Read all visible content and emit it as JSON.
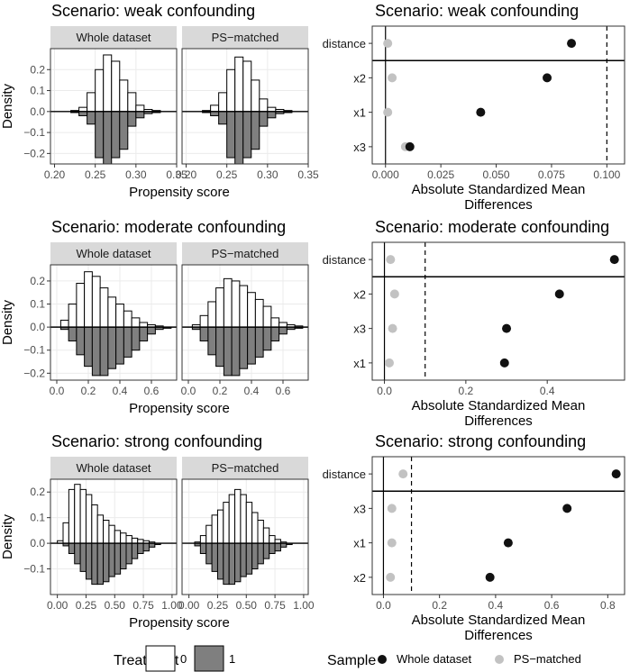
{
  "colors": {
    "treated": "#7f7f7f",
    "control": "#ffffff",
    "whole": "#111111",
    "matched": "#c2c2c2",
    "strip": "#d9d9d9"
  },
  "chart_data": [
    {
      "type": "bar",
      "subtype": "mirrored-histogram",
      "title": "Scenario: weak confounding",
      "ylabel": "Density",
      "xlabel": "Propensity score",
      "ylim": [
        -0.25,
        0.3
      ],
      "yticks": [
        "0.2",
        "0.1",
        "0.0",
        "−0.1",
        "−0.2"
      ],
      "yticks_values": [
        0.2,
        0.1,
        0,
        -0.1,
        -0.2
      ],
      "panels": [
        {
          "strip": "Whole dataset",
          "xlim": [
            0.195,
            0.35
          ],
          "xticks": [
            "0.20",
            "0.25",
            "0.30",
            "0.35"
          ],
          "xticks_values": [
            0.2,
            0.25,
            0.3,
            0.35
          ],
          "bins": [
            0.215,
            0.225,
            0.235,
            0.245,
            0.255,
            0.265,
            0.275,
            0.285,
            0.295,
            0.305,
            0.315,
            0.325,
            0.335,
            0.345
          ],
          "top": [
            0.0,
            0.005,
            0.02,
            0.09,
            0.2,
            0.27,
            0.24,
            0.15,
            0.09,
            0.03,
            0.01,
            0.005,
            0.0,
            0.0
          ],
          "bottom": [
            0.0,
            -0.005,
            -0.02,
            -0.06,
            -0.22,
            -0.25,
            -0.22,
            -0.18,
            -0.07,
            -0.03,
            -0.01,
            -0.005,
            0.0,
            0.0
          ]
        },
        {
          "strip": "PS−matched",
          "xlim": [
            0.195,
            0.35
          ],
          "xticks": [
            "0.20",
            "0.25",
            "0.30",
            "0.35"
          ],
          "xticks_values": [
            0.2,
            0.25,
            0.3,
            0.35
          ],
          "bins": [
            0.215,
            0.225,
            0.235,
            0.245,
            0.255,
            0.265,
            0.275,
            0.285,
            0.295,
            0.305,
            0.315,
            0.325,
            0.335,
            0.345
          ],
          "top": [
            0.0,
            0.005,
            0.03,
            0.09,
            0.2,
            0.26,
            0.24,
            0.15,
            0.06,
            0.02,
            0.01,
            0.005,
            0.0,
            0.0
          ],
          "bottom": [
            0.0,
            -0.005,
            -0.02,
            -0.06,
            -0.22,
            -0.25,
            -0.22,
            -0.18,
            -0.07,
            -0.03,
            -0.01,
            -0.005,
            0.0,
            0.0
          ]
        }
      ]
    },
    {
      "type": "scatter",
      "subtype": "love-plot",
      "title": "Scenario: weak confounding",
      "xlabel": "Absolute Standardized Mean Differences",
      "xlim": [
        -0.006,
        0.108
      ],
      "xticks": [
        "0.000",
        "0.025",
        "0.050",
        "0.075",
        "0.100"
      ],
      "xticks_values": [
        0,
        0.025,
        0.05,
        0.075,
        0.1
      ],
      "threshold": 0.1,
      "rows": [
        "distance",
        "x2",
        "x1",
        "x3"
      ],
      "whole": [
        0.084,
        0.073,
        0.043,
        0.011
      ],
      "matched": [
        0.001,
        0.003,
        0.001,
        0.009
      ]
    },
    {
      "type": "bar",
      "subtype": "mirrored-histogram",
      "title": "Scenario: moderate confounding",
      "ylabel": "Density",
      "xlabel": "Propensity score",
      "ylim": [
        -0.23,
        0.27
      ],
      "yticks": [
        "0.2",
        "0.1",
        "0.0",
        "−0.1",
        "−0.2"
      ],
      "yticks_values": [
        0.2,
        0.1,
        0,
        -0.1,
        -0.2
      ],
      "panels": [
        {
          "strip": "Whole dataset",
          "xlim": [
            -0.04,
            0.76
          ],
          "xticks": [
            "0.0",
            "0.2",
            "0.4",
            "0.6"
          ],
          "xticks_values": [
            0,
            0.2,
            0.4,
            0.6
          ],
          "bins": [
            0.05,
            0.1,
            0.15,
            0.2,
            0.25,
            0.3,
            0.35,
            0.4,
            0.45,
            0.5,
            0.55,
            0.6,
            0.65,
            0.7
          ],
          "top": [
            0.03,
            0.1,
            0.19,
            0.24,
            0.22,
            0.17,
            0.13,
            0.1,
            0.07,
            0.04,
            0.02,
            0.01,
            0.005,
            0.0
          ],
          "bottom": [
            -0.01,
            -0.06,
            -0.12,
            -0.17,
            -0.21,
            -0.21,
            -0.18,
            -0.16,
            -0.13,
            -0.1,
            -0.06,
            -0.03,
            -0.01,
            -0.005
          ]
        },
        {
          "strip": "PS−matched",
          "xlim": [
            -0.04,
            0.76
          ],
          "xticks": [
            "0.0",
            "0.2",
            "0.4",
            "0.6"
          ],
          "xticks_values": [
            0,
            0.2,
            0.4,
            0.6
          ],
          "bins": [
            0.05,
            0.1,
            0.15,
            0.2,
            0.25,
            0.3,
            0.35,
            0.4,
            0.45,
            0.5,
            0.55,
            0.6,
            0.65,
            0.7
          ],
          "top": [
            0.01,
            0.05,
            0.11,
            0.17,
            0.21,
            0.2,
            0.18,
            0.15,
            0.12,
            0.09,
            0.04,
            0.02,
            0.01,
            0.005
          ],
          "bottom": [
            -0.01,
            -0.06,
            -0.12,
            -0.17,
            -0.21,
            -0.21,
            -0.18,
            -0.16,
            -0.13,
            -0.1,
            -0.06,
            -0.03,
            -0.01,
            -0.005
          ]
        }
      ]
    },
    {
      "type": "scatter",
      "subtype": "love-plot",
      "title": "Scenario: moderate confounding",
      "xlabel": "Absolute Standardized Mean Differences",
      "xlim": [
        -0.03,
        0.59
      ],
      "xticks": [
        "0.0",
        "0.2",
        "0.4"
      ],
      "xticks_values": [
        0,
        0.2,
        0.4
      ],
      "threshold": 0.1,
      "rows": [
        "distance",
        "x2",
        "x3",
        "x1"
      ],
      "whole": [
        0.565,
        0.43,
        0.3,
        0.295
      ],
      "matched": [
        0.015,
        0.025,
        0.02,
        0.012
      ]
    },
    {
      "type": "bar",
      "subtype": "mirrored-histogram",
      "title": "Scenario: strong confounding",
      "ylabel": "Density",
      "xlabel": "Propensity score",
      "ylim": [
        -0.2,
        0.25
      ],
      "yticks": [
        "0.2",
        "0.1",
        "0.0",
        "−0.1"
      ],
      "yticks_values": [
        0.2,
        0.1,
        0,
        -0.1
      ],
      "panels": [
        {
          "strip": "Whole dataset",
          "xlim": [
            -0.06,
            1.04
          ],
          "xticks": [
            "0.00",
            "0.25",
            "0.50",
            "0.75",
            "1.00"
          ],
          "xticks_values": [
            0,
            0.25,
            0.5,
            0.75,
            1
          ],
          "bins": [
            0.025,
            0.075,
            0.125,
            0.175,
            0.225,
            0.275,
            0.325,
            0.375,
            0.425,
            0.475,
            0.525,
            0.575,
            0.625,
            0.675,
            0.725,
            0.775,
            0.825,
            0.875,
            0.925
          ],
          "top": [
            0.01,
            0.08,
            0.21,
            0.23,
            0.21,
            0.19,
            0.15,
            0.11,
            0.09,
            0.07,
            0.05,
            0.04,
            0.03,
            0.02,
            0.015,
            0.01,
            0.005,
            0.0,
            0.0
          ],
          "bottom": [
            0.0,
            -0.01,
            -0.04,
            -0.08,
            -0.11,
            -0.14,
            -0.16,
            -0.16,
            -0.15,
            -0.13,
            -0.12,
            -0.1,
            -0.08,
            -0.06,
            -0.04,
            -0.03,
            -0.015,
            -0.005,
            0.0
          ]
        },
        {
          "strip": "PS−matched",
          "xlim": [
            -0.06,
            1.04
          ],
          "xticks": [
            "0.00",
            "0.25",
            "0.50",
            "0.75",
            "1.00"
          ],
          "xticks_values": [
            0,
            0.25,
            0.5,
            0.75,
            1
          ],
          "bins": [
            0.025,
            0.075,
            0.125,
            0.175,
            0.225,
            0.275,
            0.325,
            0.375,
            0.425,
            0.475,
            0.525,
            0.575,
            0.625,
            0.675,
            0.725,
            0.775,
            0.825,
            0.875,
            0.925
          ],
          "top": [
            0.0,
            0.005,
            0.03,
            0.07,
            0.11,
            0.13,
            0.16,
            0.19,
            0.21,
            0.19,
            0.16,
            0.12,
            0.09,
            0.06,
            0.03,
            0.015,
            0.005,
            0.0,
            0.0
          ],
          "bottom": [
            0.0,
            -0.01,
            -0.04,
            -0.08,
            -0.11,
            -0.14,
            -0.16,
            -0.16,
            -0.15,
            -0.13,
            -0.12,
            -0.1,
            -0.08,
            -0.06,
            -0.04,
            -0.03,
            -0.015,
            -0.005,
            0.0
          ]
        }
      ]
    },
    {
      "type": "scatter",
      "subtype": "love-plot",
      "title": "Scenario: strong confounding",
      "xlabel": "Absolute Standardized Mean Differences",
      "xlim": [
        -0.04,
        0.86
      ],
      "xticks": [
        "0.0",
        "0.2",
        "0.4",
        "0.6",
        "0.8"
      ],
      "xticks_values": [
        0,
        0.2,
        0.4,
        0.6,
        0.8
      ],
      "threshold": 0.1,
      "rows": [
        "distance",
        "x3",
        "x1",
        "x2"
      ],
      "whole": [
        0.83,
        0.655,
        0.445,
        0.38
      ],
      "matched": [
        0.07,
        0.03,
        0.03,
        0.025
      ]
    }
  ],
  "legends": {
    "treatment": {
      "title": "Treatment",
      "keys": [
        "0",
        "1"
      ]
    },
    "sample": {
      "title": "Sample",
      "keys": [
        "Whole dataset",
        "PS−matched"
      ]
    }
  }
}
